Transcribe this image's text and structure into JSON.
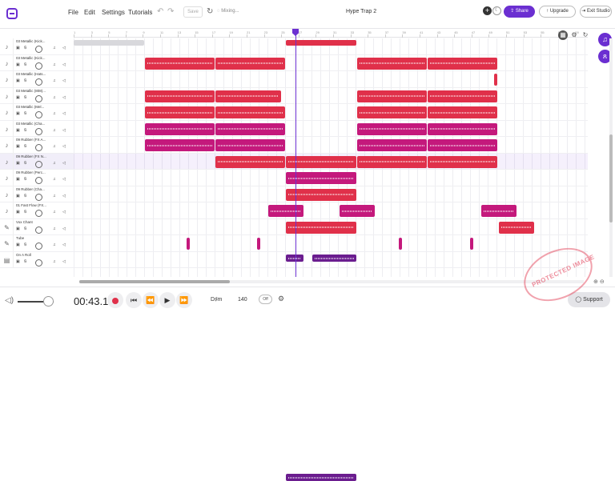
{
  "menu": {
    "file": "File",
    "edit": "Edit",
    "settings": "Settings",
    "tutorials": "Tutorials"
  },
  "toolbar": {
    "save": "Save",
    "status": "Mixing...",
    "project_title": "Hype Trap 2",
    "share": "Share",
    "upgrade": "Upgrade",
    "exit": "Exit Studio"
  },
  "ruler": [
    "1",
    "3",
    "5",
    "7",
    "9",
    "11",
    "13",
    "15",
    "17",
    "19",
    "21",
    "23",
    "25",
    "27",
    "29",
    "31",
    "33",
    "35",
    "37",
    "39",
    "41",
    "43",
    "45",
    "47",
    "49",
    "51",
    "53",
    "55",
    "57",
    "59"
  ],
  "tracks": [
    {
      "name": "03 Metallic (Kick..."
    },
    {
      "name": "03 Metallic (Kick..."
    },
    {
      "name": "03 Metallic (Hats..."
    },
    {
      "name": "03 Metallic (808)..."
    },
    {
      "name": "03 Metallic (Mel..."
    },
    {
      "name": "03 Metallic (Cha..."
    },
    {
      "name": "09 Rubber (FX A..."
    },
    {
      "name": "09 Rubber (FX N..."
    },
    {
      "name": "09 Rubber (Perc..."
    },
    {
      "name": "09 Rubber (Cha..."
    },
    {
      "name": "01 Fast Flow (FX..."
    },
    {
      "name": "Vox Chant"
    },
    {
      "name": "Tube"
    },
    {
      "name": "On A Roll"
    }
  ],
  "transport": {
    "time": "00:43.1",
    "key": "D♯m",
    "bpm": "140",
    "metronome": "Off",
    "support": "Support"
  },
  "colors": {
    "accent": "#6b2fd1",
    "red_clip": "#e0304a",
    "magenta_clip": "#c4197c",
    "purple_clip": "#6b1d8f"
  },
  "watermark": "PROTECTED IMAGE"
}
